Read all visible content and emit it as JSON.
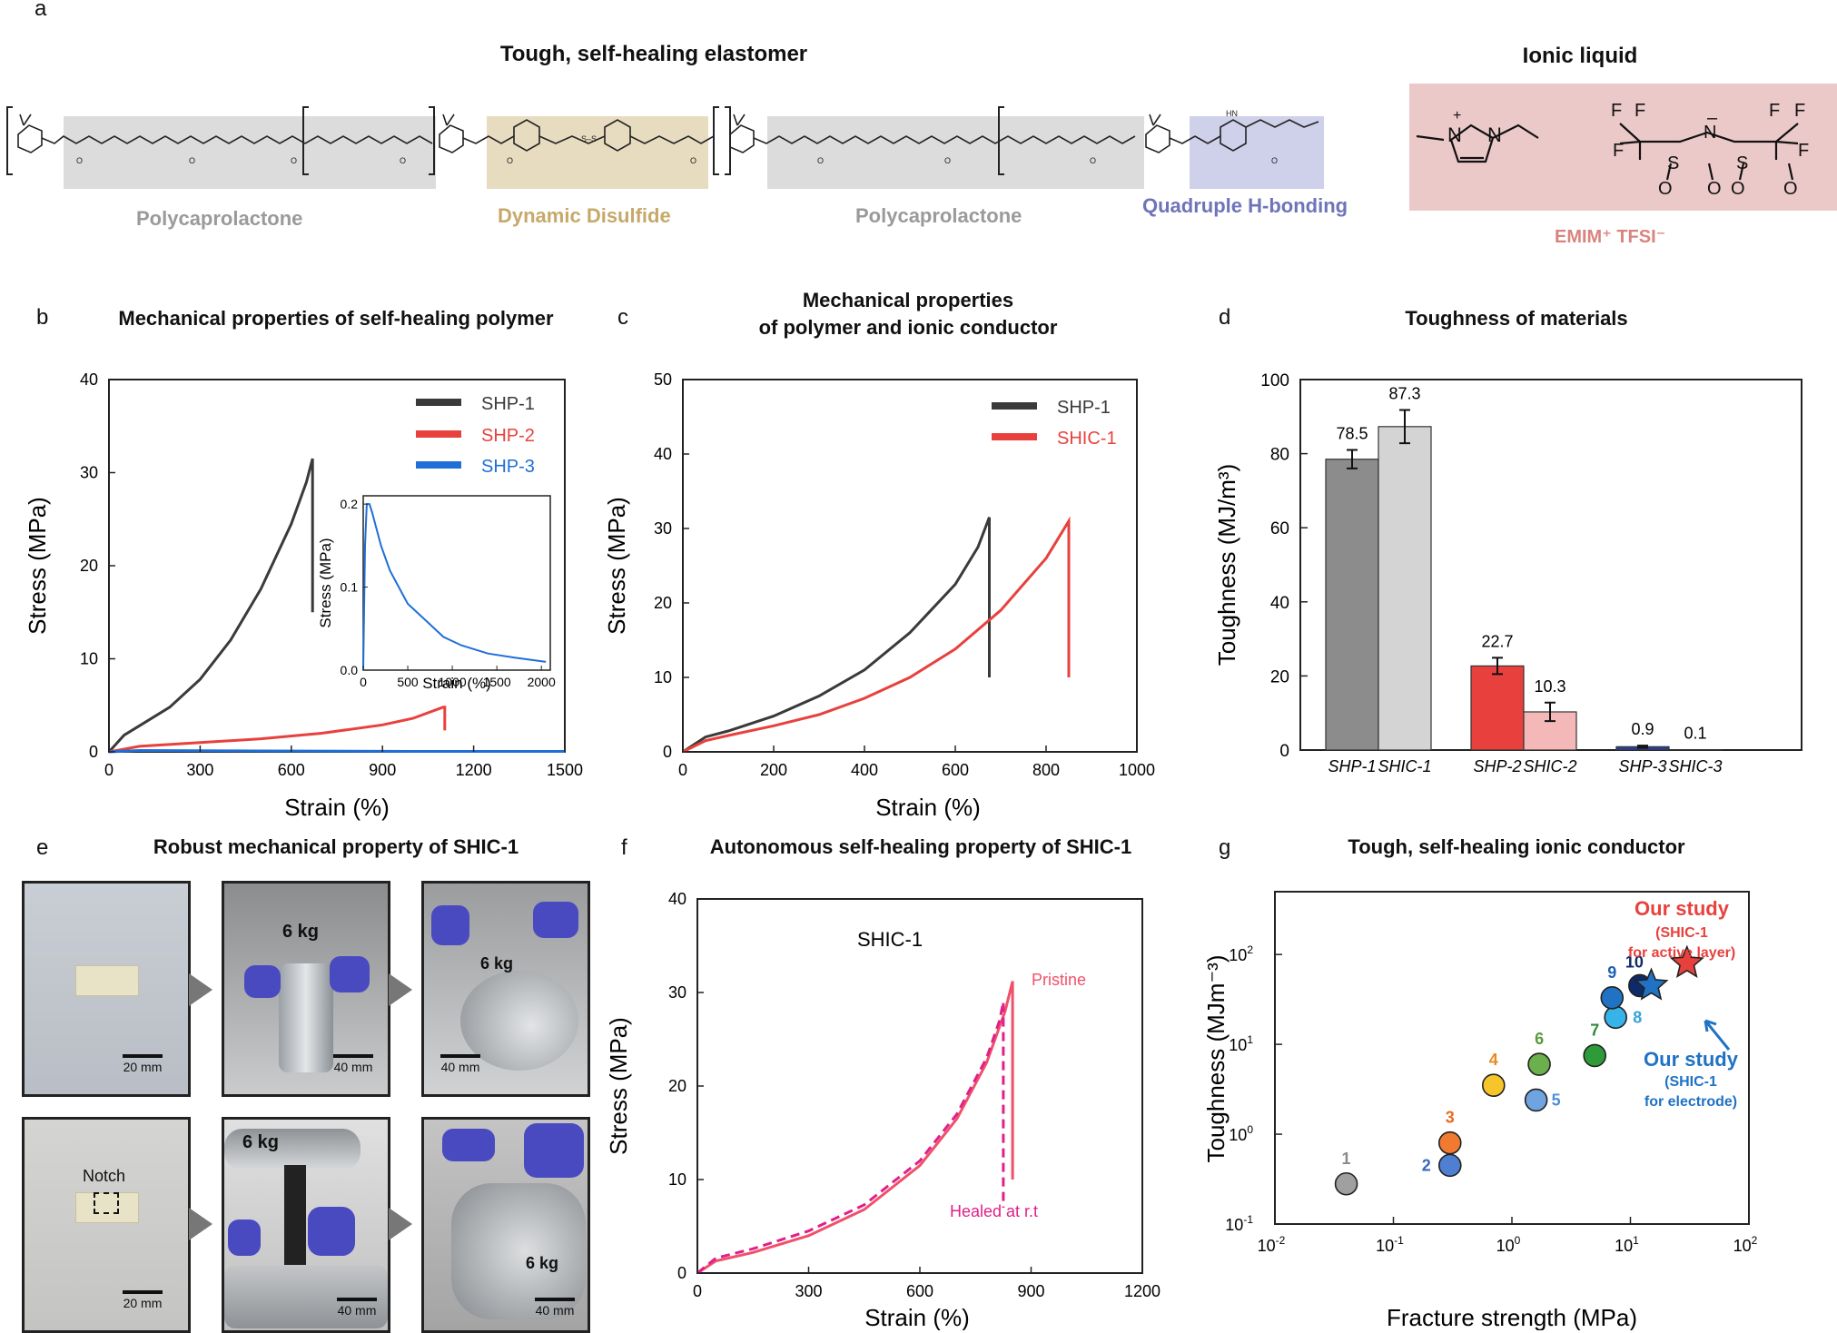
{
  "panel_labels": {
    "a": "a",
    "b": "b",
    "c": "c",
    "d": "d",
    "e": "e",
    "f": "f",
    "g": "g"
  },
  "panel_a": {
    "title_left": "Tough, self-healing elastomer",
    "title_right": "Ionic liquid",
    "segment_labels": [
      "Polycaprolactone",
      "Dynamic Disulfide",
      "Polycaprolactone",
      "Quadruple H-bonding"
    ],
    "ionic_liquid_name": "EMIM⁺ TFSI⁻",
    "colors": {
      "pcl": "#dcdcdc",
      "disulfide": "#e8dcc0",
      "hbond": "#cfd0ea",
      "ionic": "#ecc9c9",
      "pcl_text": "#9a9a9a",
      "disulfide_text": "#c6a96a",
      "hbond_text": "#6f74b8",
      "ionic_text": "#d9837e"
    }
  },
  "panel_b": {
    "title": "Mechanical properties of self-healing polymer",
    "chart_data": {
      "type": "line",
      "xlabel": "Strain (%)",
      "ylabel": "Stress (MPa)",
      "xlim": [
        0,
        1500
      ],
      "ylim": [
        0,
        40
      ],
      "xticks": [
        "0",
        "300",
        "600",
        "900",
        "1200",
        "1500"
      ],
      "yticks": [
        "0",
        "10",
        "20",
        "30",
        "40"
      ],
      "series": [
        {
          "name": "SHP-1",
          "color": "#3a3a3a",
          "x": [
            0,
            50,
            100,
            200,
            300,
            400,
            500,
            600,
            650,
            670,
            670
          ],
          "y": [
            0,
            1.8,
            2.8,
            4.8,
            7.8,
            12,
            17.5,
            24.5,
            29,
            31.5,
            15
          ]
        },
        {
          "name": "SHP-2",
          "color": "#e8413d",
          "x": [
            0,
            100,
            300,
            500,
            700,
            900,
            1000,
            1100,
            1105,
            1105
          ],
          "y": [
            0,
            0.6,
            1,
            1.4,
            2,
            2.9,
            3.6,
            4.8,
            4.8,
            2.3
          ]
        },
        {
          "name": "SHP-3",
          "color": "#1f6fd6",
          "x": [
            0,
            100,
            500,
            1000,
            1500
          ],
          "y": [
            0,
            0.15,
            0.1,
            0.05,
            0.05
          ]
        }
      ],
      "inset": {
        "xlabel": "Strain (%)",
        "ylabel": "Stress (MPa)",
        "xlim": [
          0,
          2100
        ],
        "ylim": [
          0,
          0.21
        ],
        "xticks": [
          "0",
          "500",
          "1000",
          "1500",
          "2000"
        ],
        "yticks": [
          "0.0",
          "0.1",
          "0.2"
        ],
        "x": [
          0,
          20,
          40,
          70,
          100,
          150,
          200,
          300,
          400,
          500,
          700,
          900,
          1100,
          1400,
          1700,
          2050
        ],
        "y": [
          0,
          0.15,
          0.2,
          0.2,
          0.19,
          0.17,
          0.15,
          0.12,
          0.1,
          0.08,
          0.06,
          0.04,
          0.03,
          0.02,
          0.015,
          0.01
        ]
      }
    }
  },
  "panel_c": {
    "title_line1": "Mechanical properties",
    "title_line2": "of polymer and ionic conductor",
    "chart_data": {
      "type": "line",
      "xlabel": "Strain (%)",
      "ylabel": "Stress (MPa)",
      "xlim": [
        0,
        1000
      ],
      "ylim": [
        0,
        50
      ],
      "xticks": [
        "0",
        "200",
        "400",
        "600",
        "800",
        "1000"
      ],
      "yticks": [
        "0",
        "10",
        "20",
        "30",
        "40",
        "50"
      ],
      "series": [
        {
          "name": "SHP-1",
          "color": "#3a3a3a",
          "x": [
            0,
            50,
            100,
            200,
            300,
            400,
            500,
            600,
            650,
            675,
            675
          ],
          "y": [
            0,
            2,
            2.8,
            4.8,
            7.5,
            11,
            16,
            22.5,
            27.5,
            31.5,
            10
          ]
        },
        {
          "name": "SHIC-1",
          "color": "#e8413d",
          "x": [
            0,
            50,
            100,
            200,
            300,
            400,
            500,
            600,
            700,
            800,
            850,
            850
          ],
          "y": [
            0,
            1.5,
            2.2,
            3.5,
            5,
            7.2,
            10,
            13.8,
            19,
            26,
            31,
            10
          ]
        }
      ]
    }
  },
  "panel_d": {
    "title": "Toughness of materials",
    "chart_data": {
      "type": "bar",
      "ylabel": "Toughness (MJ/m³)",
      "ylim": [
        0,
        100
      ],
      "yticks": [
        "0",
        "20",
        "40",
        "60",
        "80",
        "100"
      ],
      "categories": [
        "SHP-1",
        "SHIC-1",
        "SHP-2",
        "SHIC-2",
        "SHP-3",
        "SHIC-3"
      ],
      "values": [
        78.5,
        87.3,
        22.7,
        10.3,
        0.9,
        0.1
      ],
      "value_labels": [
        "78.5",
        "87.3",
        "22.7",
        "10.3",
        "0.9",
        "0.1"
      ],
      "errors": [
        2.5,
        4.5,
        2.2,
        2.5,
        0.3,
        0
      ],
      "colors": [
        "#8c8c8c",
        "#d4d4d4",
        "#e8413d",
        "#f5b8b8",
        "#2a3f9a",
        "#9aaee0"
      ]
    }
  },
  "panel_e": {
    "title": "Robust mechanical property of SHIC-1",
    "labels": {
      "weight": "6 kg",
      "notch": "Notch",
      "scale20": "20 mm",
      "scale40": "40 mm"
    }
  },
  "panel_f": {
    "title": "Autonomous self-healing  property of SHIC-1",
    "chart_data": {
      "type": "line",
      "xlabel": "Strain (%)",
      "ylabel": "Stress (MPa)",
      "xlim": [
        0,
        1200
      ],
      "ylim": [
        0,
        40
      ],
      "xticks": [
        "0",
        "300",
        "600",
        "900",
        "1200"
      ],
      "yticks": [
        "0",
        "10",
        "20",
        "30",
        "40"
      ],
      "annotation": "SHIC-1",
      "series": [
        {
          "name": "Pristine",
          "color": "#f0506a",
          "style": "solid",
          "x": [
            0,
            50,
            150,
            300,
            450,
            600,
            700,
            780,
            830,
            850,
            850
          ],
          "y": [
            0,
            1.3,
            2.2,
            4,
            6.8,
            11.5,
            16.5,
            22.5,
            28,
            31.2,
            10
          ]
        },
        {
          "name": "Healed at r.t",
          "color": "#e0208a",
          "style": "dashed",
          "x": [
            0,
            50,
            150,
            300,
            450,
            600,
            700,
            780,
            815,
            825,
            825
          ],
          "y": [
            0,
            1.6,
            2.6,
            4.5,
            7.3,
            12,
            17,
            23,
            27,
            29,
            7
          ]
        }
      ]
    }
  },
  "panel_g": {
    "title": "Tough, self-healing ionic conductor",
    "chart_data": {
      "type": "scatter",
      "xlabel": "Fracture strength (MPa)",
      "ylabel": "Toughness (MJm⁻³)",
      "xscale": "log",
      "yscale": "log",
      "xlim": [
        0.01,
        100
      ],
      "ylim": [
        0.1,
        500
      ],
      "xticks": [
        {
          "b": "10",
          "e": "-2"
        },
        {
          "b": "10",
          "e": "-1"
        },
        {
          "b": "10",
          "e": "0"
        },
        {
          "b": "10",
          "e": "1"
        },
        {
          "b": "10",
          "e": "2"
        }
      ],
      "yticks": [
        {
          "b": "10",
          "e": "-1"
        },
        {
          "b": "10",
          "e": "0"
        },
        {
          "b": "10",
          "e": "1"
        },
        {
          "b": "10",
          "e": "2"
        }
      ],
      "points": [
        {
          "label": "1",
          "x": 0.04,
          "y": 0.28,
          "color": "#a0a0a0",
          "lcolor": "#8a8a8a"
        },
        {
          "label": "2",
          "x": 0.3,
          "y": 0.45,
          "color": "#4f7fd0",
          "lcolor": "#3a67c0"
        },
        {
          "label": "3",
          "x": 0.3,
          "y": 0.8,
          "color": "#f07a30",
          "lcolor": "#e86a20"
        },
        {
          "label": "4",
          "x": 0.7,
          "y": 3.5,
          "color": "#f5c52a",
          "lcolor": "#e88a20"
        },
        {
          "label": "5",
          "x": 1.6,
          "y": 2.4,
          "color": "#6fa4e0",
          "lcolor": "#4f8fd8"
        },
        {
          "label": "6",
          "x": 1.7,
          "y": 6,
          "color": "#6ab04c",
          "lcolor": "#5a9a3c"
        },
        {
          "label": "7",
          "x": 5,
          "y": 7.5,
          "color": "#2e9a3a",
          "lcolor": "#2e8a3a"
        },
        {
          "label": "8",
          "x": 7.5,
          "y": 20,
          "color": "#36b4ea",
          "lcolor": "#36a4da"
        },
        {
          "label": "9",
          "x": 7,
          "y": 33,
          "color": "#1f72c4",
          "lcolor": "#1f62b4"
        },
        {
          "label": "10",
          "x": 12,
          "y": 45,
          "color": "#0f2a6a",
          "lcolor": "#0f2a6a"
        }
      ],
      "stars": [
        {
          "name": "Our study (SHIC-1 for active layer)",
          "x": 30,
          "y": 80,
          "color": "#e8413d"
        },
        {
          "name": "Our study (SHIC-1 for electrode)",
          "x": 15,
          "y": 45,
          "color": "#1f72c4"
        }
      ],
      "notes": {
        "red_title": "Our study",
        "red_sub1": "(SHIC-1",
        "red_sub2": "for active layer)",
        "blue_title": "Our study",
        "blue_sub1": "(SHIC-1",
        "blue_sub2": "for electrode)"
      }
    }
  }
}
